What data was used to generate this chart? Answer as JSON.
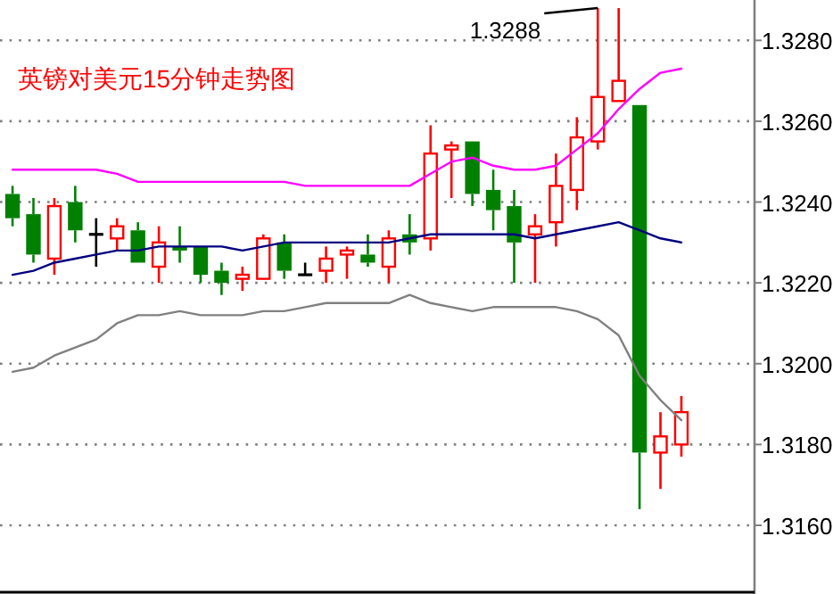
{
  "chart_data": {
    "type": "candlestick",
    "title": "英镑对美元15分钟走势图",
    "categories": [
      null,
      null,
      null,
      null,
      null,
      null,
      null,
      null,
      null,
      null,
      null,
      null,
      null,
      null,
      null,
      null,
      null,
      null,
      null,
      null,
      null,
      null,
      null,
      null,
      null,
      null,
      null,
      null,
      null,
      null,
      null,
      null,
      null
    ],
    "ohlc": [
      [
        1.3242,
        1.3244,
        1.3234,
        1.3236
      ],
      [
        1.3237,
        1.3241,
        1.3225,
        1.3227
      ],
      [
        1.3226,
        1.3241,
        1.3222,
        1.3239
      ],
      [
        1.324,
        1.3244,
        1.323,
        1.3233
      ],
      [
        1.3232,
        1.3236,
        1.3224,
        1.3232
      ],
      [
        1.3231,
        1.3236,
        1.3228,
        1.3234
      ],
      [
        1.3233,
        1.3235,
        1.3225,
        1.3225
      ],
      [
        1.3224,
        1.3234,
        1.322,
        1.323
      ],
      [
        1.3229,
        1.3234,
        1.3225,
        1.3228
      ],
      [
        1.3229,
        1.3229,
        1.322,
        1.3222
      ],
      [
        1.3223,
        1.3225,
        1.3217,
        1.322
      ],
      [
        1.3221,
        1.3224,
        1.3218,
        1.3222
      ],
      [
        1.3221,
        1.3232,
        1.3221,
        1.3231
      ],
      [
        1.323,
        1.3232,
        1.3221,
        1.3223
      ],
      [
        1.3222,
        1.3225,
        1.3222,
        1.3222
      ],
      [
        1.3223,
        1.3229,
        1.322,
        1.3226
      ],
      [
        1.3227,
        1.3229,
        1.3221,
        1.3228
      ],
      [
        1.3227,
        1.3232,
        1.3224,
        1.3225
      ],
      [
        1.3224,
        1.3233,
        1.322,
        1.3231
      ],
      [
        1.3232,
        1.3237,
        1.3227,
        1.323
      ],
      [
        1.3231,
        1.3259,
        1.3228,
        1.3252
      ],
      [
        1.3253,
        1.3255,
        1.3241,
        1.3254
      ],
      [
        1.3255,
        1.3255,
        1.3239,
        1.3242
      ],
      [
        1.3243,
        1.3248,
        1.3233,
        1.3238
      ],
      [
        1.3239,
        1.3243,
        1.322,
        1.323
      ],
      [
        1.3232,
        1.3237,
        1.322,
        1.3234
      ],
      [
        1.3235,
        1.3252,
        1.3229,
        1.3244
      ],
      [
        1.3243,
        1.3261,
        1.3238,
        1.3256
      ],
      [
        1.3255,
        1.3288,
        1.3253,
        1.3266
      ],
      [
        1.3265,
        1.3288,
        1.3265,
        1.327
      ],
      [
        1.3264,
        1.3264,
        1.3164,
        1.3178
      ],
      [
        1.3178,
        1.3188,
        1.3169,
        1.3182
      ],
      [
        1.318,
        1.3192,
        1.3177,
        1.3188
      ]
    ],
    "colors": [
      "#008000",
      "#008000",
      "#ff0000",
      "#008000",
      "#000000",
      "#ff0000",
      "#008000",
      "#ff0000",
      "#008000",
      "#008000",
      "#008000",
      "#ff0000",
      "#ff0000",
      "#008000",
      "#000000",
      "#ff0000",
      "#ff0000",
      "#008000",
      "#ff0000",
      "#008000",
      "#ff0000",
      "#ff0000",
      "#008000",
      "#008000",
      "#008000",
      "#ff0000",
      "#ff0000",
      "#ff0000",
      "#ff0000",
      "#ff0000",
      "#008000",
      "#ff0000",
      "#ff0000"
    ],
    "series": [
      {
        "type": "line",
        "color": "#ff00ff",
        "values": [
          1.3248,
          1.3248,
          1.3248,
          1.3248,
          1.3248,
          1.3247,
          1.3245,
          1.3245,
          1.3245,
          1.3245,
          1.3245,
          1.3245,
          1.3245,
          1.3245,
          1.3244,
          1.3244,
          1.3244,
          1.3244,
          1.3244,
          1.3244,
          1.3247,
          1.325,
          1.3251,
          1.3249,
          1.3248,
          1.3248,
          1.3249,
          1.3253,
          1.3257,
          1.3263,
          1.3268,
          1.3272,
          1.3273
        ]
      },
      {
        "type": "line",
        "color": "#000080",
        "values": [
          1.3222,
          1.3223,
          1.3225,
          1.3226,
          1.3227,
          1.3228,
          1.3228,
          1.3229,
          1.3229,
          1.3229,
          1.3229,
          1.3228,
          1.3229,
          1.323,
          1.323,
          1.323,
          1.323,
          1.323,
          1.323,
          1.3231,
          1.3232,
          1.3232,
          1.3232,
          1.3232,
          1.3232,
          1.3231,
          1.3232,
          1.3233,
          1.3234,
          1.3235,
          1.3233,
          1.3231,
          1.323
        ]
      },
      {
        "type": "line",
        "color": "#808080",
        "values": [
          1.3198,
          1.3199,
          1.3202,
          1.3204,
          1.3206,
          1.321,
          1.3212,
          1.3212,
          1.3213,
          1.3212,
          1.3212,
          1.3212,
          1.3213,
          1.3213,
          1.3214,
          1.3215,
          1.3215,
          1.3215,
          1.3215,
          1.3217,
          1.3215,
          1.3214,
          1.3213,
          1.3214,
          1.3214,
          1.3214,
          1.3214,
          1.3213,
          1.3211,
          1.3207,
          1.3197,
          1.3191,
          1.3186
        ]
      }
    ],
    "ylim": [
      1.3143,
      1.329
    ],
    "yticks": [
      {
        "value": 1.316,
        "label": "1.3160"
      },
      {
        "value": 1.318,
        "label": "1.3180"
      },
      {
        "value": 1.32,
        "label": "1.3200"
      },
      {
        "value": 1.322,
        "label": "1.3220"
      },
      {
        "value": 1.324,
        "label": "1.3240"
      },
      {
        "value": 1.326,
        "label": "1.3260"
      },
      {
        "value": 1.328,
        "label": "1.3280"
      }
    ],
    "grid": "y",
    "annotations": [
      "1.3288"
    ]
  }
}
